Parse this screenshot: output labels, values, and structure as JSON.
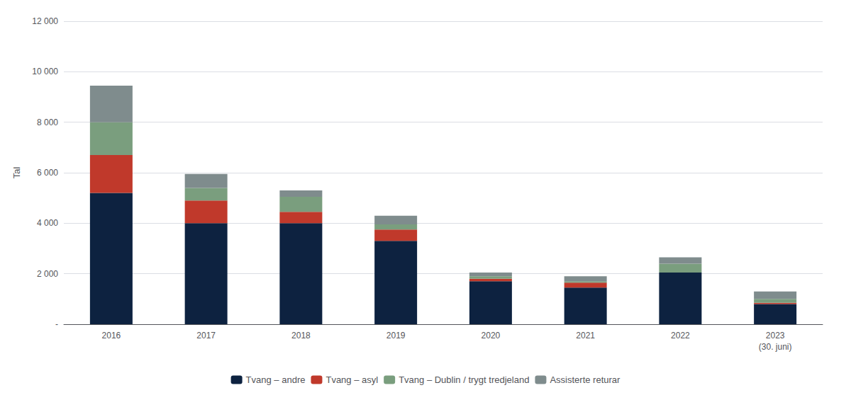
{
  "chart_data": {
    "type": "bar",
    "stacked": true,
    "categories": [
      "2016",
      "2017",
      "2018",
      "2019",
      "2020",
      "2021",
      "2022",
      "2023\n(30. juni)"
    ],
    "series": [
      {
        "name": "Tvang – andre",
        "color": "#0d2240",
        "values": [
          5200,
          4000,
          4000,
          3300,
          1700,
          1450,
          2050,
          800
        ]
      },
      {
        "name": "Tvang – asyl",
        "color": "#c0392b",
        "values": [
          1500,
          900,
          450,
          450,
          100,
          200,
          0,
          50
        ]
      },
      {
        "name": "Tvang – Dublin / trygt tredjeland",
        "color": "#7a9e7e",
        "values": [
          1300,
          500,
          600,
          200,
          100,
          50,
          350,
          150
        ]
      },
      {
        "name": "Assisterte returar",
        "color": "#7f8c8d",
        "values": [
          1450,
          550,
          250,
          350,
          150,
          200,
          250,
          300
        ]
      }
    ],
    "ylabel": "Tal",
    "ylim": [
      0,
      12000
    ],
    "yticks": [
      {
        "value": 0,
        "label": "-"
      },
      {
        "value": 2000,
        "label": "2 000"
      },
      {
        "value": 4000,
        "label": "4 000"
      },
      {
        "value": 6000,
        "label": "6 000"
      },
      {
        "value": 8000,
        "label": "8 000"
      },
      {
        "value": 10000,
        "label": "10 000"
      },
      {
        "value": 12000,
        "label": "12 000"
      }
    ],
    "grid": true,
    "legend": "bottom"
  }
}
